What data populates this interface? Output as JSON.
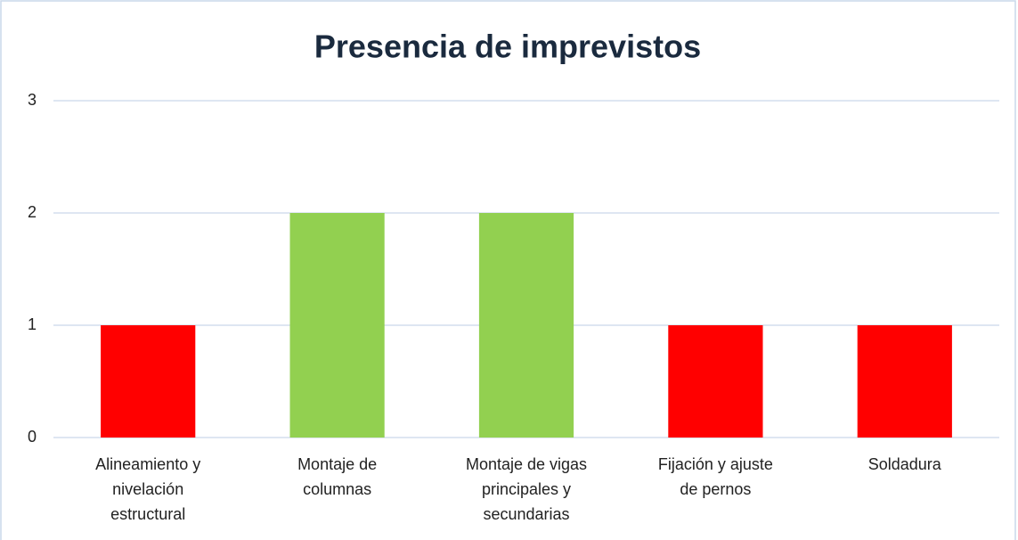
{
  "chart_data": {
    "type": "bar",
    "title": "Presencia de imprevistos",
    "categories": [
      "Alineamiento y nivelación estructural",
      "Montaje de columnas",
      "Montaje de vigas principales y secundarias",
      "Fijación y ajuste de pernos",
      "Soldadura"
    ],
    "values": [
      1,
      2,
      2,
      1,
      1
    ],
    "colors": [
      "#ff0000",
      "#92d050",
      "#92d050",
      "#ff0000",
      "#ff0000"
    ],
    "ylim": [
      0,
      3
    ],
    "yticks": [
      0,
      1,
      2,
      3
    ],
    "grid": true
  }
}
